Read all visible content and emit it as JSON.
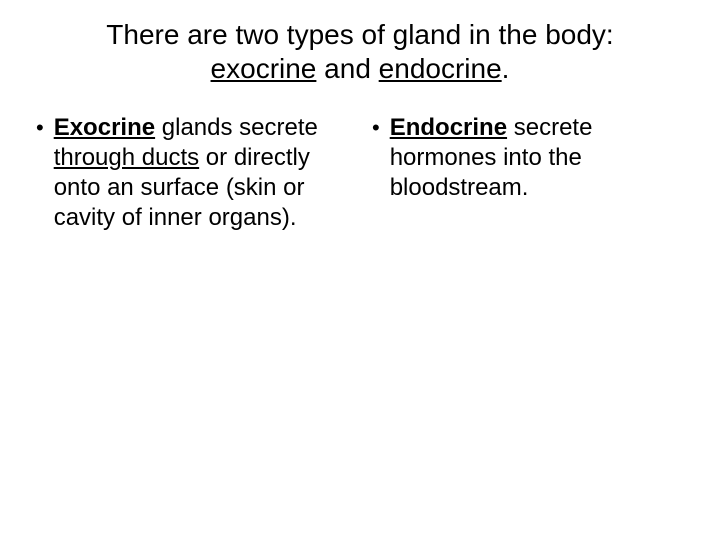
{
  "title": {
    "line1": "There are two types of gland in the body:",
    "line2_pre": "exocrine",
    "line2_mid": " and ",
    "line2_post": "endocrine",
    "line2_end": "."
  },
  "left": {
    "term": "Exocrine",
    "after_term": " glands secrete ",
    "underlined": "through ducts",
    "rest": " or directly onto an surface (skin or cavity of inner organs)."
  },
  "right": {
    "term": "Endocrine",
    "rest": " secrete hormones into the bloodstream."
  },
  "bullet_char": "•",
  "colors": {
    "text": "#000000",
    "background": "#ffffff"
  },
  "font_sizes": {
    "title": 28,
    "body": 24
  }
}
